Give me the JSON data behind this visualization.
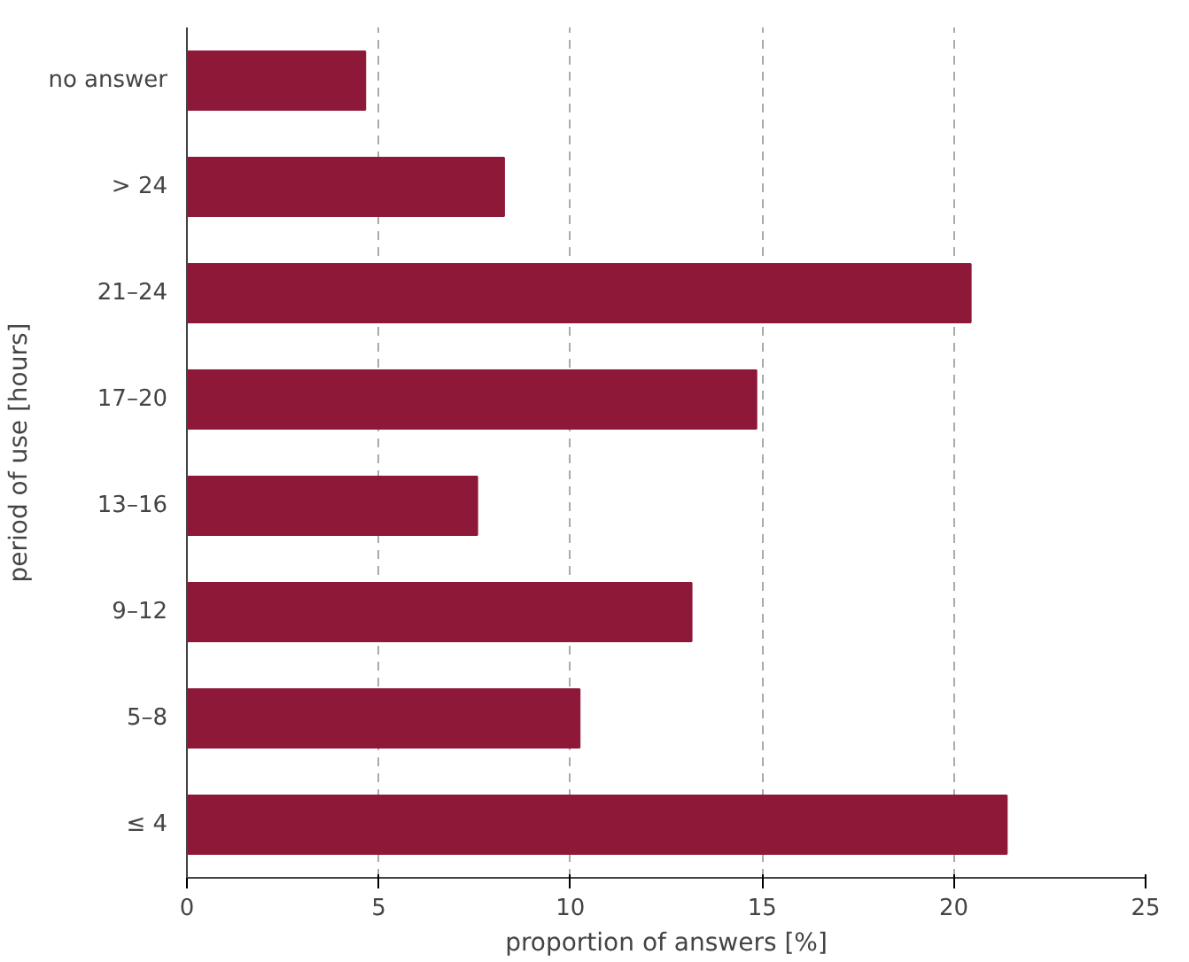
{
  "chart_data": {
    "type": "bar",
    "orientation": "horizontal",
    "xlabel": "proportion of answers [%]",
    "ylabel": "period of use [hours]",
    "categories": [
      "no answer",
      "> 24",
      "21–24",
      "17–20",
      "13–16",
      "9–12",
      "5–8",
      "≤ 4"
    ],
    "values": [
      4.65,
      8.27,
      20.44,
      14.85,
      7.57,
      13.16,
      10.24,
      21.38
    ],
    "color": "#8e1838",
    "xlim": [
      0,
      25
    ],
    "xticks": [
      0,
      5,
      10,
      15,
      20,
      25
    ],
    "grid": "x",
    "line_style": "dashed"
  }
}
